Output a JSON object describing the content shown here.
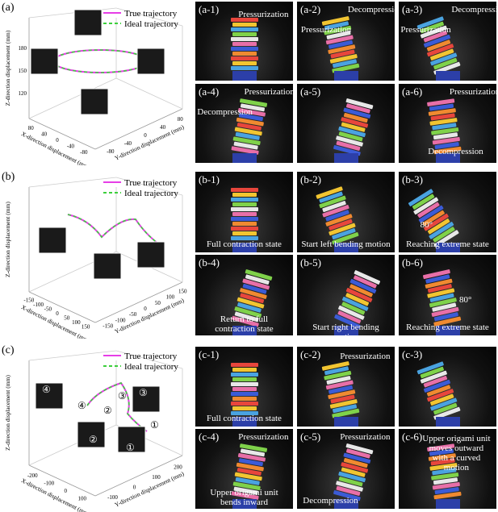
{
  "panels": [
    {
      "label": "(a)",
      "plot": {
        "legend": [
          {
            "name": "True trajectory",
            "color": "#e63ee6"
          },
          {
            "name": "Ideal trajectory",
            "color": "#3ccf3c"
          }
        ],
        "z_title": "Z-direction displacement (mm)",
        "x_title": "X-direction displacement (mm)",
        "y_title": "Y-direction displacement (mm)",
        "z_ticks": [
          "180",
          "150",
          "120"
        ],
        "x_ticks": [
          "80",
          "40",
          "0",
          "-40",
          "-80"
        ],
        "y_ticks": [
          "-80",
          "-40",
          "0",
          "40",
          "80"
        ],
        "markers": []
      },
      "photos": [
        {
          "label": "(a-1)",
          "annotations": [
            "Pressurization"
          ]
        },
        {
          "label": "(a-2)",
          "annotations": [
            "Decompression",
            "Pressurization"
          ]
        },
        {
          "label": "(a-3)",
          "annotations": [
            "Decompression",
            "Pressurization"
          ]
        },
        {
          "label": "(a-4)",
          "annotations": [
            "Pressurization",
            "Decompression"
          ]
        },
        {
          "label": "(a-5)",
          "annotations": []
        },
        {
          "label": "(a-6)",
          "annotations": [
            "Pressurization",
            "Decompression"
          ]
        }
      ]
    },
    {
      "label": "(b)",
      "plot": {
        "legend": [
          {
            "name": "True trajectory",
            "color": "#e63ee6"
          },
          {
            "name": "Ideal trajectory",
            "color": "#3ccf3c"
          }
        ],
        "z_title": "Z-direction displacement (mm)",
        "x_title": "X-direction displacement (mm)",
        "y_title": "Y-direction displacement (mm)",
        "z_ticks": [],
        "x_ticks": [
          "-150",
          "-100",
          "-50",
          "0",
          "50",
          "100",
          "150"
        ],
        "y_ticks": [
          "-150",
          "-100",
          "-50",
          "0",
          "50",
          "100",
          "150"
        ],
        "markers": []
      },
      "photos": [
        {
          "label": "(b-1)",
          "annotations": [
            "Full contraction state"
          ]
        },
        {
          "label": "(b-2)",
          "annotations": [
            "Start left bending motion"
          ]
        },
        {
          "label": "(b-3)",
          "annotations": [
            "80°",
            "Reaching extreme state"
          ]
        },
        {
          "label": "(b-4)",
          "annotations": [
            "Return to full contraction state"
          ]
        },
        {
          "label": "(b-5)",
          "annotations": [
            "Start right bending motion"
          ]
        },
        {
          "label": "(b-6)",
          "annotations": [
            "80°",
            "Reaching extreme state"
          ]
        }
      ]
    },
    {
      "label": "(c)",
      "plot": {
        "legend": [
          {
            "name": "True trajectory",
            "color": "#e63ee6"
          },
          {
            "name": "Ideal trajectory",
            "color": "#3ccf3c"
          }
        ],
        "z_title": "Z-direction displacement (mm)",
        "x_title": "X-direction displacement (mm)",
        "y_title": "Y-direction displacement (mm)",
        "z_ticks": [],
        "x_ticks": [
          "-200",
          "-100",
          "0",
          "100"
        ],
        "y_ticks": [
          "-100",
          "0",
          "100",
          "200"
        ],
        "markers": [
          "④",
          "④",
          "②",
          "②",
          "③",
          "③",
          "①",
          "①"
        ]
      },
      "photos": [
        {
          "label": "(c-1)",
          "annotations": [
            "Full contraction state"
          ]
        },
        {
          "label": "(c-2)",
          "annotations": [
            "Pressurization"
          ]
        },
        {
          "label": "(c-3)",
          "annotations": []
        },
        {
          "label": "(c-4)",
          "annotations": [
            "Pressurization",
            "Upper origami unit bends inward"
          ]
        },
        {
          "label": "(c-5)",
          "annotations": [
            "Pressurization",
            "Decompression"
          ]
        },
        {
          "label": "(c-6)",
          "annotations": [
            "Upper origami unit moves outward with a curved motion"
          ]
        }
      ]
    }
  ]
}
